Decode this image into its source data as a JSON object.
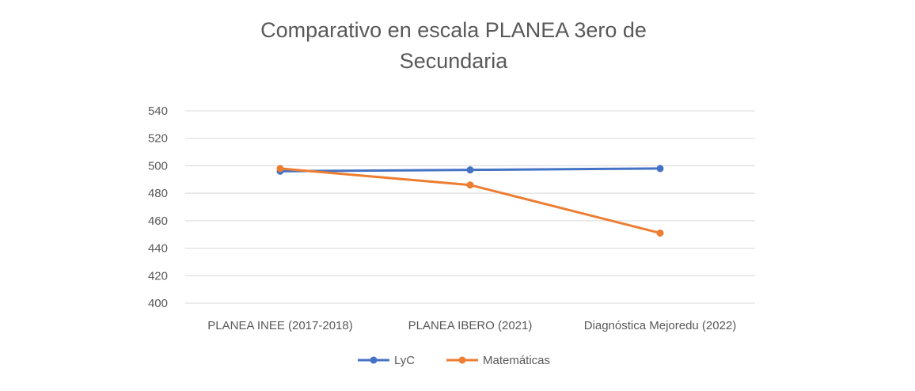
{
  "chart_data": {
    "type": "line",
    "title_lines": [
      "Comparativo en escala PLANEA 3ero de",
      "Secundaria"
    ],
    "categories": [
      "PLANEA INEE (2017-2018)",
      "PLANEA IBERO (2021)",
      "Diagnóstica Mejoredu (2022)"
    ],
    "y_ticks": [
      "540",
      "520",
      "500",
      "480",
      "460",
      "440",
      "420",
      "400"
    ],
    "ylim": [
      400,
      540
    ],
    "grid": true,
    "legend_position": "bottom",
    "series": [
      {
        "name": "LyC",
        "color": "#4472C4",
        "values": [
          496,
          497,
          498
        ]
      },
      {
        "name": "Matemáticas",
        "color": "#ED7D31",
        "values": [
          498,
          486,
          451
        ]
      }
    ]
  }
}
